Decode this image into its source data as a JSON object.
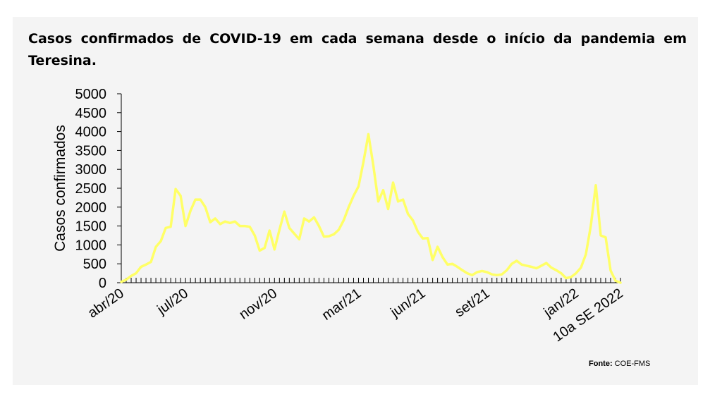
{
  "chart_data": {
    "type": "line",
    "title": "Casos confirmados de COVID-19 em cada semana desde o início da pandemia em Teresina.",
    "xlabel": "",
    "ylabel": "Casos confirmados",
    "ylim": [
      0,
      5000
    ],
    "yticks": [
      0,
      500,
      1000,
      1500,
      2000,
      2500,
      3000,
      3500,
      4000,
      4500,
      5000
    ],
    "grid": false,
    "legend": "none",
    "line_color": "#ffff66",
    "x_tick_labels": [
      {
        "label": "abr/20",
        "index": 0
      },
      {
        "label": "jul/20",
        "index": 13
      },
      {
        "label": "nov/20",
        "index": 31
      },
      {
        "label": "mar/21",
        "index": 48
      },
      {
        "label": "jun/21",
        "index": 61
      },
      {
        "label": "set/21",
        "index": 74
      },
      {
        "label": "jan/22",
        "index": 92
      },
      {
        "label": "10a SE 2022",
        "index": 101
      }
    ],
    "series": [
      {
        "values": [
          20,
          80,
          180,
          250,
          420,
          480,
          550,
          950,
          1100,
          1450,
          1480,
          2480,
          2300,
          1500,
          1900,
          2200,
          2200,
          2000,
          1600,
          1700,
          1550,
          1620,
          1580,
          1620,
          1500,
          1500,
          1480,
          1250,
          850,
          920,
          1380,
          880,
          1400,
          1880,
          1450,
          1300,
          1150,
          1700,
          1620,
          1730,
          1500,
          1220,
          1230,
          1280,
          1400,
          1650,
          2000,
          2300,
          2550,
          3200,
          3930,
          3100,
          2150,
          2450,
          1950,
          2650,
          2150,
          2200,
          1820,
          1650,
          1350,
          1170,
          1180,
          600,
          950,
          680,
          480,
          500,
          420,
          330,
          250,
          200,
          280,
          310,
          280,
          220,
          200,
          220,
          330,
          500,
          580,
          480,
          450,
          420,
          380,
          450,
          520,
          400,
          330,
          250,
          120,
          150,
          250,
          400,
          750,
          1500,
          2580,
          1250,
          1200,
          320,
          50,
          0
        ]
      }
    ]
  },
  "source": {
    "label": "Fonte:",
    "text": "COE-FMS"
  }
}
